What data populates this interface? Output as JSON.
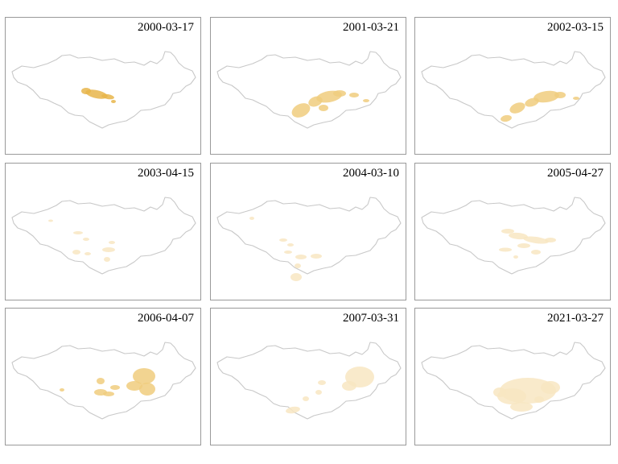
{
  "panels": [
    {
      "date": "2000-03-17",
      "intensity": "high"
    },
    {
      "date": "2001-03-21",
      "intensity": "medium"
    },
    {
      "date": "2002-03-15",
      "intensity": "medium"
    },
    {
      "date": "2003-04-15",
      "intensity": "low"
    },
    {
      "date": "2004-03-10",
      "intensity": "low"
    },
    {
      "date": "2005-04-27",
      "intensity": "low"
    },
    {
      "date": "2006-04-07",
      "intensity": "medium"
    },
    {
      "date": "2007-03-31",
      "intensity": "low"
    },
    {
      "date": "2021-03-27",
      "intensity": "low"
    }
  ],
  "colors": {
    "outline": "#c8c8c8",
    "dust_high": "#e8b54a",
    "dust_medium": "#f0cc7e",
    "dust_low": "#f8e6c2",
    "panel_border": "#9a9a9a"
  }
}
